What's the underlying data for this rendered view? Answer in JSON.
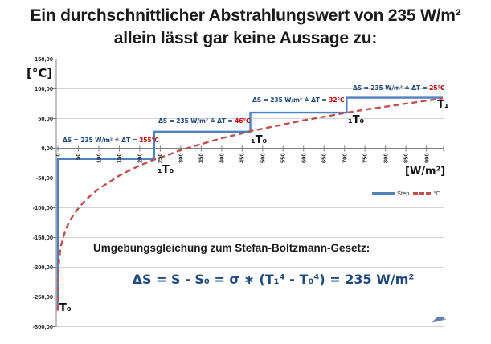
{
  "title": {
    "line1": "Ein durchschnittlicher Abstrahlungswert von 235 W/m²",
    "line2": "allein lässt gar keine Aussage zu:"
  },
  "chart": {
    "y_axis_unit": "[°C]",
    "x_axis_unit": "[W/m²]",
    "legend": [
      {
        "label": "Step",
        "color": "#4F81BD",
        "style": "solid"
      },
      {
        "label": "°C",
        "color": "#C0504D",
        "style": "dashed"
      }
    ],
    "annotations": [
      {
        "prefix": "ΔS = 235 W/m² ≙ ΔT = ",
        "value": "255°C"
      },
      {
        "prefix": "ΔS = 235 W/m² ≙ ΔT = ",
        "value": "46°C"
      },
      {
        "prefix": "ΔS = 235 W/m² ≙ ΔT = ",
        "value": "32°C"
      },
      {
        "prefix": "ΔS = 235 W/m² ≙ ΔT = ",
        "value": "25°C"
      }
    ],
    "point_labels": [
      "T₀",
      "₁T₀",
      "₁T₀",
      "₁T₀",
      "T₁"
    ]
  },
  "chart_data": {
    "type": "line",
    "title": "Ein durchschnittlicher Abstrahlungswert von 235 W/m² allein lässt gar keine Aussage zu:",
    "xlabel": "[W/m²]",
    "ylabel": "[°C]",
    "xlim": [
      0,
      940
    ],
    "ylim": [
      -300,
      150
    ],
    "x_tick_step": 50,
    "x_tick_max_labeled": 900,
    "y_tick_step": 50,
    "grid": "horizontal",
    "legend_position": "right-middle",
    "series": [
      {
        "name": "Step",
        "color": "#4F81BD",
        "style": "solid",
        "points": [
          [
            0,
            -273
          ],
          [
            0,
            -18
          ],
          [
            235,
            -18
          ],
          [
            235,
            28
          ],
          [
            470,
            28
          ],
          [
            470,
            60
          ],
          [
            705,
            60
          ],
          [
            705,
            85
          ],
          [
            940,
            85
          ]
        ]
      },
      {
        "name": "°C",
        "color": "#C0504D",
        "style": "dashed",
        "points": [
          [
            0,
            -273
          ],
          [
            2,
            -198
          ],
          [
            4,
            -183
          ],
          [
            6,
            -171
          ],
          [
            8,
            -163
          ],
          [
            10,
            -158
          ],
          [
            15,
            -146
          ],
          [
            20,
            -135
          ],
          [
            25,
            -128
          ],
          [
            30,
            -121
          ],
          [
            40,
            -110
          ],
          [
            50,
            -101
          ],
          [
            65,
            -89
          ],
          [
            80,
            -79
          ],
          [
            100,
            -68
          ],
          [
            125,
            -57
          ],
          [
            150,
            -46
          ],
          [
            175,
            -37
          ],
          [
            200,
            -29
          ],
          [
            235,
            -19
          ],
          [
            270,
            -11
          ],
          [
            300,
            -3
          ],
          [
            350,
            7
          ],
          [
            400,
            17
          ],
          [
            450,
            25
          ],
          [
            470,
            29
          ],
          [
            500,
            33
          ],
          [
            550,
            40
          ],
          [
            600,
            47
          ],
          [
            650,
            53
          ],
          [
            705,
            60
          ],
          [
            750,
            65
          ],
          [
            800,
            70
          ],
          [
            850,
            75
          ],
          [
            900,
            80
          ],
          [
            940,
            84
          ]
        ]
      }
    ],
    "step_values_c": [
      -273,
      -18,
      28,
      60,
      85
    ],
    "delta_s_per_step_w_m2": 235
  },
  "equation": {
    "heading": "Umgebungsgleichung zum Stefan-Boltzmann-Gesetz:",
    "formula": "ΔS = S - S₀ = σ ∗ (T₁⁴ - T₀⁴) = 235 W/m²"
  }
}
